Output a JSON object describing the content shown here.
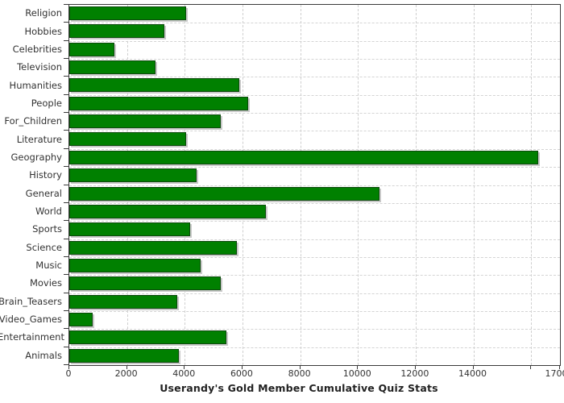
{
  "chart_data": {
    "type": "bar",
    "orientation": "horizontal",
    "title": "Userandy's Gold Member Cumulative Quiz Stats",
    "categories": [
      "Religion",
      "Hobbies",
      "Celebrities",
      "Television",
      "Humanities",
      "People",
      "For_Children",
      "Literature",
      "Geography",
      "History",
      "General",
      "World",
      "Sports",
      "Science",
      "Music",
      "Movies",
      "Brain_Teasers",
      "Video_Games",
      "Entertainment",
      "Animals"
    ],
    "values": [
      4050,
      3300,
      1550,
      3000,
      5900,
      6200,
      5250,
      4050,
      16250,
      4400,
      10750,
      6800,
      4200,
      5800,
      4550,
      5250,
      3750,
      800,
      5450,
      3800
    ],
    "xlabel": "",
    "ylabel": "",
    "xlim": [
      0,
      17000
    ],
    "x_ticks": [
      {
        "v": 0,
        "label": "0"
      },
      {
        "v": 2000,
        "label": "2000"
      },
      {
        "v": 4000,
        "label": "4000"
      },
      {
        "v": 6000,
        "label": "6000"
      },
      {
        "v": 8000,
        "label": "8000"
      },
      {
        "v": 10000,
        "label": "10000"
      },
      {
        "v": 12000,
        "label": "12000"
      },
      {
        "v": 14000,
        "label": "14000"
      },
      {
        "v": 16000,
        "label": ""
      },
      {
        "v": 17000,
        "label": "17000"
      }
    ],
    "grid": "dashed",
    "legend": "none",
    "colors": {
      "bar_fill": "#008000",
      "bar_border": "#0c4a0c",
      "bar_shadow": "#c9c9c9",
      "gridline": "#cfcfcf",
      "frame": "#3a3a3a",
      "tick_text": "#333333",
      "title_text": "#222222"
    }
  }
}
